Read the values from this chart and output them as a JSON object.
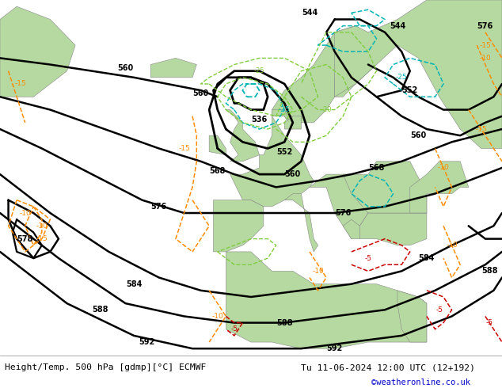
{
  "title_left": "Height/Temp. 500 hPa [gdmp][°C] ECMWF",
  "title_right": "Tu 11-06-2024 12:00 UTC (12+192)",
  "credit": "©weatheronline.co.uk",
  "land_color": "#b5d9a0",
  "sea_color": "#c8c8c8",
  "coast_color": "#888888",
  "z500_color": "#000000",
  "temp_warm_color": "#ff8c00",
  "temp_cold_teal": "#00b4b4",
  "temp_cold_green": "#80cc40",
  "temp_hot_red": "#cc0000",
  "fig_width": 6.34,
  "fig_height": 4.9,
  "dpi": 100,
  "bottom_color": "#ffffff",
  "text_color": "#000000",
  "credit_color": "#0000cc"
}
